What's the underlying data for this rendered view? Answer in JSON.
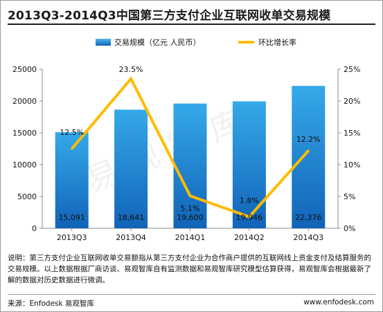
{
  "title": "2013Q3-2014Q3中国第三方支付企业互联网收单交易规模",
  "watermark": "易观智库",
  "note": "说明：第三方支付企业互联网收单交易额指从第三方支付企业为合作商户提供的互联网线上资金支付及结算服务的交易规模。以上数据根据厂商访谈、易观智库自有监测数据和易观智库研究模型估算获得，易观智库会根据最新了解的数据对历史数据进行微调。",
  "source": "来源：Enfodesk 易观智库",
  "url": "www.enfodesk.com",
  "chart_data": {
    "type": "bar",
    "categories": [
      "2013Q3",
      "2013Q4",
      "2014Q1",
      "2014Q2",
      "2014Q3"
    ],
    "series": [
      {
        "name": "交易规模（亿元 人民币）",
        "type": "bar",
        "axis": "left",
        "values": [
          15091,
          18641,
          19600,
          19946,
          22376
        ],
        "labels": [
          "15,091",
          "18,641",
          "19,600",
          "19,946",
          "22,376"
        ]
      },
      {
        "name": "环比增长率",
        "type": "line",
        "axis": "right",
        "values": [
          12.5,
          23.5,
          5.1,
          1.8,
          12.2
        ],
        "labels": [
          "12.5%",
          "23.5%",
          "5.1%",
          "1.8%",
          "12.2%"
        ]
      }
    ],
    "y_left": {
      "ylim": [
        0,
        25000
      ],
      "ticks": [
        "0",
        "5000",
        "10000",
        "15000",
        "20000",
        "25000"
      ]
    },
    "y_right": {
      "ylim": [
        0,
        25
      ],
      "ticks": [
        "0%",
        "5%",
        "10%",
        "15%",
        "20%",
        "25%"
      ]
    },
    "legend": "top",
    "grid": false,
    "colors": {
      "bar_top": "#35a9e9",
      "bar_bottom": "#1163b8",
      "line": "#ffbc00",
      "legend_bar": "#1f7fd0"
    }
  }
}
